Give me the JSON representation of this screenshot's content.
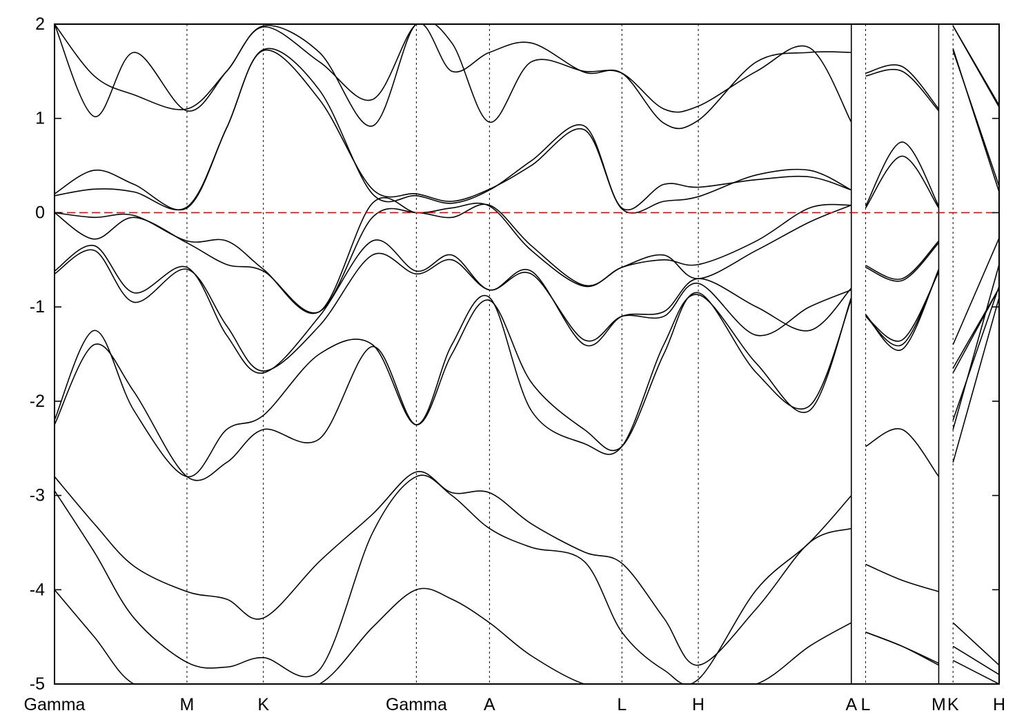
{
  "chart_data": {
    "type": "line",
    "title": "",
    "xlabel": "",
    "ylabel": "",
    "ylim": [
      -5,
      2
    ],
    "yticks": [
      2,
      1,
      0,
      -1,
      -2,
      -3,
      -4,
      -5
    ],
    "k_points": [
      {
        "label": "Gamma",
        "pos": 0.0
      },
      {
        "label": "M",
        "pos": 1.0
      },
      {
        "label": "K",
        "pos": 1.577
      },
      {
        "label": "Gamma",
        "pos": 2.732
      },
      {
        "label": "A",
        "pos": 3.284
      },
      {
        "label": "L",
        "pos": 4.284
      },
      {
        "label": "H",
        "pos": 4.861
      },
      {
        "label": "A",
        "pos": 6.016
      },
      {
        "label": "L",
        "pos": 6.124
      },
      {
        "label": "M",
        "pos": 6.676
      },
      {
        "label": "K",
        "pos": 6.784
      },
      {
        "label": "H",
        "pos": 7.132
      }
    ],
    "path_breaks": [
      6.016,
      6.676
    ],
    "fermi_level": 0,
    "fermi_color": "#e00000",
    "band_color": "#000000",
    "bands": [
      {
        "x": [
          0,
          0.3,
          0.6,
          1.0,
          1.3,
          1.577,
          2.0,
          2.4,
          2.732,
          3.0,
          3.284,
          3.6,
          4.0,
          4.284,
          4.6,
          4.861,
          5.3,
          5.7,
          6.016,
          6.124,
          6.4,
          6.676,
          6.784,
          7.132
        ],
        "y": [
          -4.0,
          -4.5,
          -5.0,
          -5.0,
          -5.0,
          -5.0,
          -5.0,
          -4.4,
          -4.0,
          -4.1,
          -4.35,
          -4.7,
          -5.0,
          -5.0,
          -5.0,
          -5.0,
          -5.0,
          -4.6,
          -4.35,
          -4.45,
          -4.6,
          -4.8,
          -4.75,
          -5.0
        ]
      },
      {
        "x": [
          0,
          0.3,
          0.6,
          1.0,
          1.3,
          1.577,
          2.0,
          2.4,
          2.732,
          3.0,
          3.284,
          3.6,
          4.0,
          4.284,
          4.6,
          4.861,
          5.3,
          5.7,
          6.016,
          6.124,
          6.4,
          6.676,
          6.784,
          7.132
        ],
        "y": [
          -2.95,
          -3.6,
          -4.3,
          -4.77,
          -4.82,
          -4.72,
          -4.85,
          -3.4,
          -2.8,
          -3.0,
          -3.35,
          -3.55,
          -3.7,
          -4.45,
          -4.85,
          -4.95,
          -4.0,
          -3.5,
          -3.0,
          -4.45,
          -4.6,
          -4.78,
          -4.6,
          -4.9
        ]
      },
      {
        "x": [
          0,
          0.3,
          0.6,
          1.0,
          1.3,
          1.577,
          2.0,
          2.4,
          2.732,
          3.0,
          3.284,
          3.6,
          4.0,
          4.284,
          4.6,
          4.861,
          5.3,
          5.7,
          6.016,
          6.124,
          6.4,
          6.676,
          6.784,
          7.132
        ],
        "y": [
          -2.8,
          -3.3,
          -3.75,
          -4.02,
          -4.1,
          -4.3,
          -3.7,
          -3.2,
          -2.75,
          -2.97,
          -2.97,
          -3.3,
          -3.6,
          -3.72,
          -4.3,
          -4.8,
          -4.2,
          -3.5,
          -3.35,
          -3.73,
          -3.9,
          -4.02,
          -4.35,
          -4.8
        ]
      },
      {
        "x": [
          0,
          0.3,
          0.6,
          1.0,
          1.3,
          1.577,
          2.0,
          2.4,
          2.732,
          3.0,
          3.284,
          3.6,
          4.0,
          4.284,
          4.6,
          4.861,
          5.3,
          5.7,
          6.016,
          6.124,
          6.4,
          6.676,
          6.784,
          7.132
        ],
        "y": [
          -2.25,
          -1.4,
          -1.9,
          -2.8,
          -2.65,
          -2.3,
          -2.4,
          -1.42,
          -2.25,
          -1.5,
          -0.93,
          -1.8,
          -2.3,
          -2.48,
          -1.5,
          -0.85,
          -1.7,
          -2.05,
          -0.92,
          -2.48,
          -2.3,
          -2.8,
          -2.65,
          -0.9
        ]
      },
      {
        "x": [
          0,
          0.3,
          0.6,
          1.0,
          1.3,
          1.577,
          2.0,
          2.4,
          2.732,
          3.0,
          3.284,
          3.6,
          4.0,
          4.284,
          4.6,
          4.861,
          5.3,
          5.7,
          6.016,
          6.124,
          6.4,
          6.676,
          6.784,
          7.132
        ],
        "y": [
          -2.2,
          -1.25,
          -2.1,
          -2.8,
          -2.3,
          -2.15,
          -1.5,
          -1.4,
          -2.25,
          -1.4,
          -0.9,
          -2.1,
          -2.45,
          -2.48,
          -1.4,
          -0.87,
          -1.6,
          -2.1,
          -0.9,
          -1.1,
          -1.4,
          -0.62,
          -2.2,
          -0.78
        ]
      },
      {
        "x": [
          0,
          0.3,
          0.6,
          1.0,
          1.3,
          1.577,
          2.0,
          2.4,
          2.732,
          3.0,
          3.284,
          3.6,
          4.0,
          4.284,
          4.6,
          4.861,
          5.3,
          5.7,
          6.016,
          6.124,
          6.4,
          6.676,
          6.784,
          7.132
        ],
        "y": [
          -0.65,
          -0.4,
          -0.95,
          -0.6,
          -1.2,
          -1.68,
          -1.2,
          -0.45,
          -0.65,
          -0.5,
          -0.82,
          -0.65,
          -1.35,
          -1.1,
          -1.1,
          -0.75,
          -1.3,
          -1.0,
          -0.82,
          -1.08,
          -1.45,
          -0.6,
          -2.3,
          -0.55
        ]
      },
      {
        "x": [
          0,
          0.3,
          0.6,
          1.0,
          1.3,
          1.577,
          2.0,
          2.4,
          2.732,
          3.0,
          3.284,
          3.6,
          4.0,
          4.284,
          4.6,
          4.861,
          5.3,
          5.7,
          6.016,
          6.124,
          6.4,
          6.676,
          6.784,
          7.132
        ],
        "y": [
          -0.62,
          -0.35,
          -0.85,
          -0.58,
          -1.3,
          -1.7,
          -1.1,
          -0.3,
          -0.62,
          -0.45,
          -0.82,
          -0.62,
          -1.4,
          -1.1,
          -1.05,
          -0.7,
          -1.0,
          -1.25,
          -0.8,
          -1.1,
          -1.35,
          -0.63,
          -1.7,
          -0.8
        ]
      },
      {
        "x": [
          0,
          0.3,
          0.6,
          1.0,
          1.3,
          1.577,
          2.0,
          2.4,
          2.732,
          3.0,
          3.284,
          3.6,
          4.0,
          4.284,
          4.6,
          4.861,
          5.3,
          5.7,
          6.016,
          6.124,
          6.4,
          6.676,
          6.784,
          7.132
        ],
        "y": [
          0.0,
          -0.28,
          -0.05,
          -0.32,
          -0.55,
          -0.62,
          -1.05,
          -0.05,
          0.0,
          -0.05,
          0.08,
          -0.35,
          -0.77,
          -0.58,
          -0.45,
          -0.7,
          -0.4,
          -0.1,
          0.08,
          -0.56,
          -0.7,
          -0.3,
          -1.4,
          -0.27
        ]
      },
      {
        "x": [
          0,
          0.3,
          0.6,
          1.0,
          1.3,
          1.577,
          2.0,
          2.4,
          2.732,
          3.0,
          3.284,
          3.6,
          4.0,
          4.284,
          4.6,
          4.861,
          5.3,
          5.7,
          6.016,
          6.124,
          6.4,
          6.676,
          6.784,
          7.132
        ],
        "y": [
          0.0,
          -0.05,
          -0.03,
          -0.3,
          -0.3,
          -0.6,
          -1.05,
          0.1,
          0.0,
          0.05,
          0.07,
          -0.4,
          -0.78,
          -0.58,
          -0.5,
          -0.55,
          -0.3,
          0.05,
          0.08,
          -0.58,
          -0.72,
          -0.32,
          -1.65,
          -0.8
        ]
      },
      {
        "x": [
          0,
          0.3,
          0.6,
          1.0,
          1.3,
          1.577,
          2.0,
          2.4,
          2.732,
          3.0,
          3.284,
          3.6,
          4.0,
          4.284,
          4.6,
          4.861,
          5.3,
          5.7,
          6.016,
          6.124,
          6.4,
          6.676,
          6.784,
          7.132
        ],
        "y": [
          0.2,
          0.45,
          0.3,
          0.05,
          0.9,
          1.72,
          1.2,
          0.25,
          0.2,
          0.12,
          0.25,
          0.5,
          0.88,
          0.04,
          0.12,
          0.17,
          0.4,
          0.45,
          0.24,
          0.05,
          0.6,
          0.05,
          1.72,
          0.28
        ]
      },
      {
        "x": [
          0,
          0.3,
          0.6,
          1.0,
          1.3,
          1.577,
          2.0,
          2.4,
          2.732,
          3.0,
          3.284,
          3.6,
          4.0,
          4.284,
          4.6,
          4.861,
          5.3,
          5.7,
          6.016,
          6.124,
          6.4,
          6.676,
          6.784,
          7.132
        ],
        "y": [
          0.18,
          0.25,
          0.22,
          0.06,
          0.9,
          1.73,
          1.3,
          0.2,
          0.18,
          0.1,
          0.24,
          0.55,
          0.92,
          0.05,
          0.3,
          0.27,
          0.35,
          0.38,
          0.24,
          0.07,
          0.75,
          0.07,
          1.74,
          0.22
        ]
      },
      {
        "x": [
          0,
          0.3,
          0.6,
          1.0,
          1.3,
          1.577,
          2.0,
          2.4,
          2.732,
          3.0,
          3.284,
          3.6,
          4.0,
          4.284,
          4.6,
          4.861,
          5.3,
          5.7,
          6.016,
          6.124,
          6.4,
          6.676,
          6.784,
          7.132
        ],
        "y": [
          2.0,
          1.45,
          1.25,
          1.1,
          1.5,
          1.97,
          1.6,
          1.2,
          2.0,
          1.8,
          0.96,
          1.6,
          1.5,
          1.48,
          1.1,
          1.13,
          1.5,
          1.75,
          0.96,
          1.48,
          1.55,
          1.1,
          1.98,
          1.12
        ]
      },
      {
        "x": [
          0,
          0.3,
          0.6,
          1.0,
          1.3,
          1.577,
          2.0,
          2.4,
          2.732,
          3.0,
          3.284,
          3.6,
          4.0,
          4.284,
          4.6,
          4.861,
          5.3,
          5.7,
          6.016,
          6.124,
          6.4,
          6.676,
          6.784,
          7.132
        ],
        "y": [
          2.0,
          1.02,
          1.7,
          1.08,
          1.5,
          1.98,
          1.7,
          0.92,
          2.0,
          1.5,
          1.7,
          1.8,
          1.49,
          1.48,
          0.95,
          0.98,
          1.6,
          1.7,
          1.7,
          1.45,
          1.5,
          1.08,
          1.98,
          1.14
        ]
      }
    ]
  }
}
